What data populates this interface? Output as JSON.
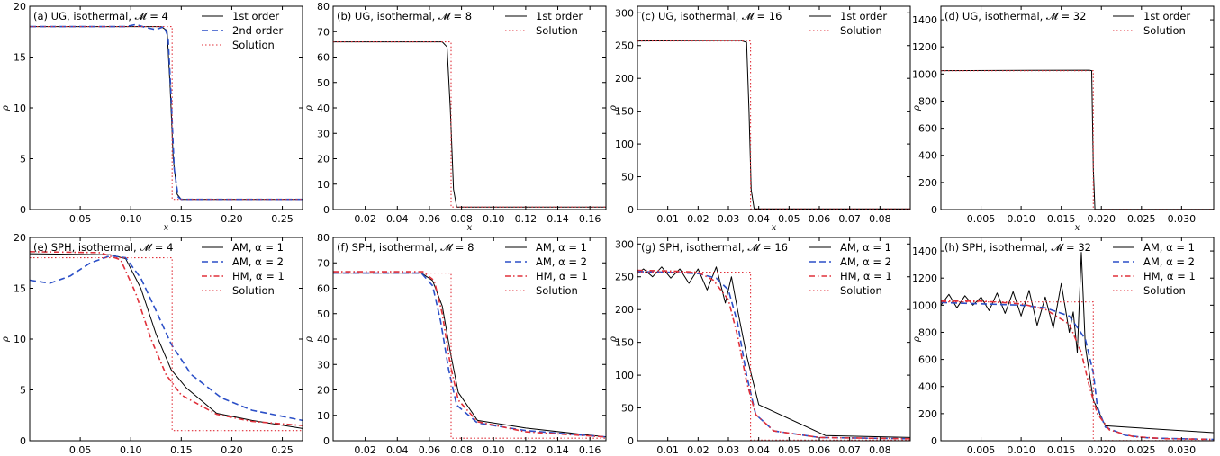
{
  "colors": {
    "black": "#000000",
    "blue": "#2b4fc7",
    "red": "#e0303a",
    "frame": "#000000"
  },
  "chart_data": [
    {
      "type": "line",
      "title": "(a) UG, isothermal, 𝓜 = 4",
      "xlabel": "x",
      "ylabel": "ρ",
      "xlim": [
        0,
        0.27
      ],
      "ylim": [
        0,
        20
      ],
      "xticks": [
        0.05,
        0.1,
        0.15,
        0.2,
        0.25
      ],
      "xtick_labels": [
        "0.05",
        "0.10",
        "0.15",
        "0.20",
        "0.25"
      ],
      "yticks": [
        0,
        5,
        10,
        15,
        20
      ],
      "ytick_labels": [
        "0",
        "5",
        "10",
        "15",
        "20"
      ],
      "grid": false,
      "legend": "top-right",
      "series": [
        {
          "name": "1st order",
          "style": "solid",
          "color": "#000000",
          "x": [
            0,
            0.13,
            0.136,
            0.139,
            0.142,
            0.146,
            0.15,
            0.27
          ],
          "y": [
            18,
            18,
            17.6,
            12,
            5,
            1.5,
            1,
            1
          ]
        },
        {
          "name": "2nd order",
          "style": "dashed",
          "color": "#2b4fc7",
          "x": [
            0,
            0.095,
            0.105,
            0.115,
            0.125,
            0.133,
            0.137,
            0.14,
            0.143,
            0.147,
            0.15,
            0.27
          ],
          "y": [
            18,
            18,
            18.2,
            17.9,
            17.7,
            18,
            17,
            11,
            4,
            1.2,
            1,
            1
          ]
        },
        {
          "name": "Solution",
          "style": "dotted",
          "color": "#e0303a",
          "x": [
            0,
            0.141,
            0.141,
            0.27
          ],
          "y": [
            18,
            18,
            1,
            1
          ]
        }
      ]
    },
    {
      "type": "line",
      "title": "(b) UG, isothermal, 𝓜 = 8",
      "xlabel": "x",
      "ylabel": "ρ",
      "xlim": [
        0,
        0.17
      ],
      "ylim": [
        0,
        80
      ],
      "xticks": [
        0.02,
        0.04,
        0.06,
        0.08,
        0.1,
        0.12,
        0.14,
        0.16
      ],
      "xtick_labels": [
        "0.02",
        "0.04",
        "0.06",
        "0.08",
        "0.10",
        "0.12",
        "0.14",
        "0.16"
      ],
      "yticks": [
        0,
        10,
        20,
        30,
        40,
        50,
        60,
        70,
        80
      ],
      "ytick_labels": [
        "0",
        "10",
        "20",
        "30",
        "40",
        "50",
        "60",
        "70",
        "80"
      ],
      "grid": false,
      "legend": "top-right",
      "series": [
        {
          "name": "1st order",
          "style": "solid",
          "color": "#000000",
          "x": [
            0,
            0.068,
            0.071,
            0.073,
            0.075,
            0.077,
            0.17
          ],
          "y": [
            66,
            66,
            64,
            40,
            8,
            1,
            1
          ]
        },
        {
          "name": "Solution",
          "style": "dotted",
          "color": "#e0303a",
          "x": [
            0,
            0.0735,
            0.0735,
            0.17
          ],
          "y": [
            66,
            66,
            1,
            1
          ]
        }
      ]
    },
    {
      "type": "line",
      "title": "(c) UG, isothermal, 𝓜 = 16",
      "xlabel": "x",
      "ylabel": "ρ",
      "xlim": [
        0,
        0.09
      ],
      "ylim": [
        0,
        310
      ],
      "xticks": [
        0.01,
        0.02,
        0.03,
        0.04,
        0.05,
        0.06,
        0.07,
        0.08
      ],
      "xtick_labels": [
        "0.01",
        "0.02",
        "0.03",
        "0.04",
        "0.05",
        "0.06",
        "0.07",
        "0.08"
      ],
      "yticks": [
        0,
        50,
        100,
        150,
        200,
        250,
        300
      ],
      "ytick_labels": [
        "0",
        "50",
        "100",
        "150",
        "200",
        "250",
        "300"
      ],
      "grid": false,
      "legend": "top-right",
      "series": [
        {
          "name": "1st order",
          "style": "solid",
          "color": "#000000",
          "x": [
            0,
            0.034,
            0.036,
            0.0368,
            0.0375,
            0.0385,
            0.09
          ],
          "y": [
            257,
            258,
            255,
            150,
            30,
            1,
            1
          ]
        },
        {
          "name": "Solution",
          "style": "dotted",
          "color": "#e0303a",
          "x": [
            0,
            0.0373,
            0.0373,
            0.09
          ],
          "y": [
            257,
            257,
            1,
            1
          ]
        }
      ]
    },
    {
      "type": "line",
      "title": "(d) UG, isothermal, 𝓜 = 32",
      "xlabel": "x",
      "ylabel": "ρ",
      "xlim": [
        0,
        0.034
      ],
      "ylim": [
        0,
        1500
      ],
      "xticks": [
        0.005,
        0.01,
        0.015,
        0.02,
        0.025,
        0.03
      ],
      "xtick_labels": [
        "0.005",
        "0.010",
        "0.015",
        "0.020",
        "0.025",
        "0.030"
      ],
      "yticks": [
        0,
        200,
        400,
        600,
        800,
        1000,
        1200,
        1400
      ],
      "ytick_labels": [
        "0",
        "200",
        "400",
        "600",
        "800",
        "1000",
        "1200",
        "1400"
      ],
      "grid": false,
      "legend": "top-right",
      "series": [
        {
          "name": "1st order",
          "style": "solid",
          "color": "#000000",
          "x": [
            0,
            0.0185,
            0.0188,
            0.019,
            0.0192,
            0.034
          ],
          "y": [
            1025,
            1028,
            1025,
            300,
            1,
            1
          ]
        },
        {
          "name": "Solution",
          "style": "dotted",
          "color": "#e0303a",
          "x": [
            0,
            0.019,
            0.019,
            0.034
          ],
          "y": [
            1024,
            1024,
            1,
            1
          ]
        }
      ]
    },
    {
      "type": "line",
      "title": "(e) SPH, isothermal, 𝓜 = 4",
      "xlabel": "x",
      "ylabel": "ρ",
      "xlim": [
        0,
        0.27
      ],
      "ylim": [
        0,
        20
      ],
      "xticks": [
        0.05,
        0.1,
        0.15,
        0.2,
        0.25
      ],
      "xtick_labels": [
        "0.05",
        "0.10",
        "0.15",
        "0.20",
        "0.25"
      ],
      "yticks": [
        0,
        5,
        10,
        15,
        20
      ],
      "ytick_labels": [
        "0",
        "5",
        "10",
        "15",
        "20"
      ],
      "grid": false,
      "legend": "top-right",
      "series": [
        {
          "name": "AM, α = 1",
          "style": "solid",
          "color": "#000000",
          "x": [
            0,
            0.08,
            0.095,
            0.11,
            0.125,
            0.14,
            0.155,
            0.185,
            0.22,
            0.27
          ],
          "y": [
            18.4,
            18.3,
            17.9,
            15,
            10.5,
            7,
            5.2,
            2.7,
            2,
            1.2
          ]
        },
        {
          "name": "AM, α = 2",
          "style": "dashed",
          "color": "#2b4fc7",
          "x": [
            0,
            0.02,
            0.04,
            0.06,
            0.08,
            0.095,
            0.11,
            0.125,
            0.14,
            0.16,
            0.19,
            0.22,
            0.27
          ],
          "y": [
            15.8,
            15.5,
            16.2,
            17.5,
            18.2,
            18,
            16,
            12.8,
            9.5,
            6.5,
            4.2,
            3,
            2
          ]
        },
        {
          "name": "HM, α = 1",
          "style": "dashdot",
          "color": "#e0303a",
          "x": [
            0,
            0.07,
            0.09,
            0.105,
            0.12,
            0.135,
            0.15,
            0.185,
            0.22,
            0.27
          ],
          "y": [
            18.6,
            18.5,
            17.8,
            14.5,
            10,
            6.5,
            4.5,
            2.6,
            1.9,
            1.5
          ]
        },
        {
          "name": "Solution",
          "style": "dotted",
          "color": "#e0303a",
          "x": [
            0,
            0.141,
            0.141,
            0.27
          ],
          "y": [
            18,
            18,
            1,
            1
          ]
        }
      ]
    },
    {
      "type": "line",
      "title": "(f) SPH, isothermal, 𝓜 = 8",
      "xlabel": "x",
      "ylabel": "ρ",
      "xlim": [
        0,
        0.17
      ],
      "ylim": [
        0,
        80
      ],
      "xticks": [
        0.02,
        0.04,
        0.06,
        0.08,
        0.1,
        0.12,
        0.14,
        0.16
      ],
      "xtick_labels": [
        "0.02",
        "0.04",
        "0.06",
        "0.08",
        "0.10",
        "0.12",
        "0.14",
        "0.16"
      ],
      "yticks": [
        0,
        10,
        20,
        30,
        40,
        50,
        60,
        70,
        80
      ],
      "ytick_labels": [
        "0",
        "10",
        "20",
        "30",
        "40",
        "50",
        "60",
        "70",
        "80"
      ],
      "grid": false,
      "legend": "top-right",
      "series": [
        {
          "name": "AM, α = 1",
          "style": "solid",
          "color": "#000000",
          "x": [
            0,
            0.055,
            0.062,
            0.068,
            0.073,
            0.078,
            0.09,
            0.12,
            0.17
          ],
          "y": [
            66,
            66,
            63,
            53,
            35,
            19,
            8,
            5,
            1.5
          ]
        },
        {
          "name": "AM, α = 2",
          "style": "dashed",
          "color": "#2b4fc7",
          "x": [
            0,
            0.055,
            0.062,
            0.067,
            0.072,
            0.077,
            0.09,
            0.12,
            0.17
          ],
          "y": [
            66,
            66,
            61,
            47,
            28,
            14,
            7,
            4,
            1.5
          ]
        },
        {
          "name": "HM, α = 1",
          "style": "dashdot",
          "color": "#e0303a",
          "x": [
            0,
            0.056,
            0.063,
            0.068,
            0.073,
            0.078,
            0.09,
            0.12,
            0.17
          ],
          "y": [
            66.5,
            66.5,
            63,
            50,
            30,
            16,
            7.5,
            3.5,
            1.5
          ]
        },
        {
          "name": "Solution",
          "style": "dotted",
          "color": "#e0303a",
          "x": [
            0,
            0.0735,
            0.0735,
            0.17
          ],
          "y": [
            66,
            66,
            1,
            1
          ]
        }
      ]
    },
    {
      "type": "line",
      "title": "(g) SPH, isothermal, 𝓜 = 16",
      "xlabel": "x",
      "ylabel": "ρ",
      "xlim": [
        0,
        0.09
      ],
      "ylim": [
        0,
        310
      ],
      "xticks": [
        0.01,
        0.02,
        0.03,
        0.04,
        0.05,
        0.06,
        0.07,
        0.08
      ],
      "xtick_labels": [
        "0.01",
        "0.02",
        "0.03",
        "0.04",
        "0.05",
        "0.06",
        "0.07",
        "0.08"
      ],
      "yticks": [
        0,
        50,
        100,
        150,
        200,
        250,
        300
      ],
      "ytick_labels": [
        "0",
        "50",
        "100",
        "150",
        "200",
        "250",
        "300"
      ],
      "grid": false,
      "legend": "top-right",
      "series": [
        {
          "name": "AM, α = 1",
          "style": "solid",
          "color": "#000000",
          "x": [
            0,
            0.002,
            0.005,
            0.008,
            0.011,
            0.014,
            0.017,
            0.02,
            0.023,
            0.026,
            0.029,
            0.031,
            0.033,
            0.036,
            0.04,
            0.062,
            0.09
          ],
          "y": [
            255,
            262,
            250,
            265,
            248,
            262,
            240,
            262,
            230,
            265,
            210,
            250,
            200,
            130,
            55,
            8,
            5
          ]
        },
        {
          "name": "AM, α = 2",
          "style": "dashed",
          "color": "#2b4fc7",
          "x": [
            0,
            0.01,
            0.02,
            0.026,
            0.03,
            0.033,
            0.036,
            0.039,
            0.045,
            0.06,
            0.09
          ],
          "y": [
            258,
            257,
            255,
            248,
            230,
            180,
            100,
            40,
            15,
            5,
            3
          ]
        },
        {
          "name": "HM, α = 1",
          "style": "dashdot",
          "color": "#e0303a",
          "x": [
            0,
            0.01,
            0.02,
            0.025,
            0.03,
            0.033,
            0.036,
            0.039,
            0.045,
            0.06,
            0.09
          ],
          "y": [
            260,
            259,
            257,
            245,
            215,
            160,
            90,
            40,
            15,
            5,
            3
          ]
        },
        {
          "name": "Solution",
          "style": "dotted",
          "color": "#e0303a",
          "x": [
            0,
            0.0373,
            0.0373,
            0.09
          ],
          "y": [
            257,
            257,
            1,
            1
          ]
        }
      ]
    },
    {
      "type": "line",
      "title": "(h) SPH, isothermal, 𝓜 = 32",
      "xlabel": "x",
      "ylabel": "ρ",
      "xlim": [
        0,
        0.034
      ],
      "ylim": [
        0,
        1500
      ],
      "xticks": [
        0.005,
        0.01,
        0.015,
        0.02,
        0.025,
        0.03
      ],
      "xtick_labels": [
        "0.005",
        "0.010",
        "0.015",
        "0.020",
        "0.025",
        "0.030"
      ],
      "yticks": [
        0,
        200,
        400,
        600,
        800,
        1000,
        1200,
        1400
      ],
      "ytick_labels": [
        "0",
        "200",
        "400",
        "600",
        "800",
        "1000",
        "1200",
        "1400"
      ],
      "grid": false,
      "legend": "top-right",
      "series": [
        {
          "name": "AM, α = 1",
          "style": "solid",
          "color": "#000000",
          "x": [
            0,
            0.001,
            0.002,
            0.003,
            0.004,
            0.005,
            0.006,
            0.007,
            0.008,
            0.009,
            0.01,
            0.011,
            0.012,
            0.013,
            0.014,
            0.015,
            0.016,
            0.0165,
            0.017,
            0.0175,
            0.018,
            0.019,
            0.0205,
            0.034
          ],
          "y": [
            1000,
            1080,
            980,
            1070,
            1000,
            1060,
            960,
            1090,
            940,
            1100,
            920,
            1110,
            850,
            1060,
            830,
            1160,
            800,
            950,
            650,
            1390,
            700,
            300,
            110,
            60
          ]
        },
        {
          "name": "AM, α = 2",
          "style": "dashed",
          "color": "#2b4fc7",
          "x": [
            0,
            0.005,
            0.01,
            0.013,
            0.016,
            0.018,
            0.019,
            0.0195,
            0.0205,
            0.023,
            0.026,
            0.034
          ],
          "y": [
            1020,
            1010,
            1000,
            980,
            920,
            750,
            500,
            250,
            100,
            40,
            20,
            10
          ]
        },
        {
          "name": "HM, α = 1",
          "style": "dashdot",
          "color": "#e0303a",
          "x": [
            0,
            0.005,
            0.01,
            0.013,
            0.016,
            0.0175,
            0.0185,
            0.0195,
            0.021,
            0.024,
            0.028,
            0.034
          ],
          "y": [
            1030,
            1030,
            1010,
            970,
            860,
            650,
            400,
            200,
            80,
            30,
            15,
            10
          ]
        },
        {
          "name": "Solution",
          "style": "dotted",
          "color": "#e0303a",
          "x": [
            0,
            0.019,
            0.019,
            0.034
          ],
          "y": [
            1024,
            1024,
            1,
            1
          ]
        }
      ]
    }
  ]
}
